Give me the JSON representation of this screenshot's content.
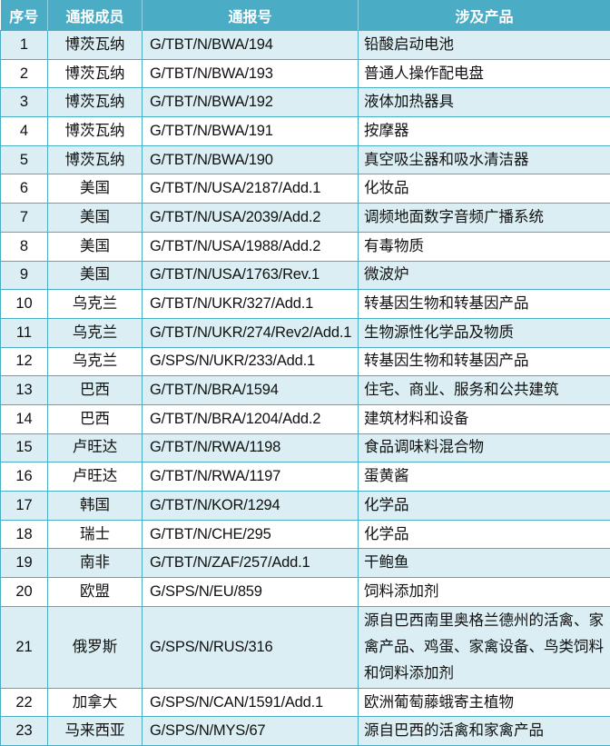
{
  "table": {
    "header": [
      "序号",
      "通报成员",
      "通报号",
      "涉及产品"
    ],
    "rows": [
      [
        "1",
        "博茨瓦纳",
        "G/TBT/N/BWA/194",
        "铅酸启动电池"
      ],
      [
        "2",
        "博茨瓦纳",
        "G/TBT/N/BWA/193",
        "普通人操作配电盘"
      ],
      [
        "3",
        "博茨瓦纳",
        "G/TBT/N/BWA/192",
        "液体加热器具"
      ],
      [
        "4",
        "博茨瓦纳",
        "G/TBT/N/BWA/191",
        "按摩器"
      ],
      [
        "5",
        "博茨瓦纳",
        "G/TBT/N/BWA/190",
        "真空吸尘器和吸水清洁器"
      ],
      [
        "6",
        "美国",
        "G/TBT/N/USA/2187/Add.1",
        "化妆品"
      ],
      [
        "7",
        "美国",
        "G/TBT/N/USA/2039/Add.2",
        "调频地面数字音频广播系统"
      ],
      [
        "8",
        "美国",
        "G/TBT/N/USA/1988/Add.2",
        "有毒物质"
      ],
      [
        "9",
        "美国",
        "G/TBT/N/USA/1763/Rev.1",
        "微波炉"
      ],
      [
        "10",
        "乌克兰",
        "G/TBT/N/UKR/327/Add.1",
        "转基因生物和转基因产品"
      ],
      [
        "11",
        "乌克兰",
        "G/TBT/N/UKR/274/Rev2/Add.1",
        "生物源性化学品及物质"
      ],
      [
        "12",
        "乌克兰",
        "G/SPS/N/UKR/233/Add.1",
        "转基因生物和转基因产品"
      ],
      [
        "13",
        "巴西",
        "G/TBT/N/BRA/1594",
        "住宅、商业、服务和公共建筑"
      ],
      [
        "14",
        "巴西",
        "G/TBT/N/BRA/1204/Add.2",
        "建筑材料和设备"
      ],
      [
        "15",
        "卢旺达",
        "G/TBT/N/RWA/1198",
        "食品调味料混合物"
      ],
      [
        "16",
        "卢旺达",
        "G/TBT/N/RWA/1197",
        "蛋黄酱"
      ],
      [
        "17",
        "韩国",
        "G/TBT/N/KOR/1294",
        "化学品"
      ],
      [
        "18",
        "瑞士",
        "G/TBT/N/CHE/295",
        "化学品"
      ],
      [
        "19",
        "南非",
        "G/TBT/N/ZAF/257/Add.1",
        "干鲍鱼"
      ],
      [
        "20",
        "欧盟",
        "G/SPS/N/EU/859",
        "饲料添加剂"
      ],
      [
        "21",
        "俄罗斯",
        "G/SPS/N/RUS/316",
        "源自巴西南里奥格兰德州的活禽、家禽产品、鸡蛋、家禽设备、鸟类饲料和饲料添加剂"
      ],
      [
        "22",
        "加拿大",
        "G/SPS/N/CAN/1591/Add.1",
        "欧洲葡萄藤蛾寄主植物"
      ],
      [
        "23",
        "马来西亚",
        "G/SPS/N/MYS/67",
        "源自巴西的活禽和家禽产品"
      ]
    ]
  }
}
